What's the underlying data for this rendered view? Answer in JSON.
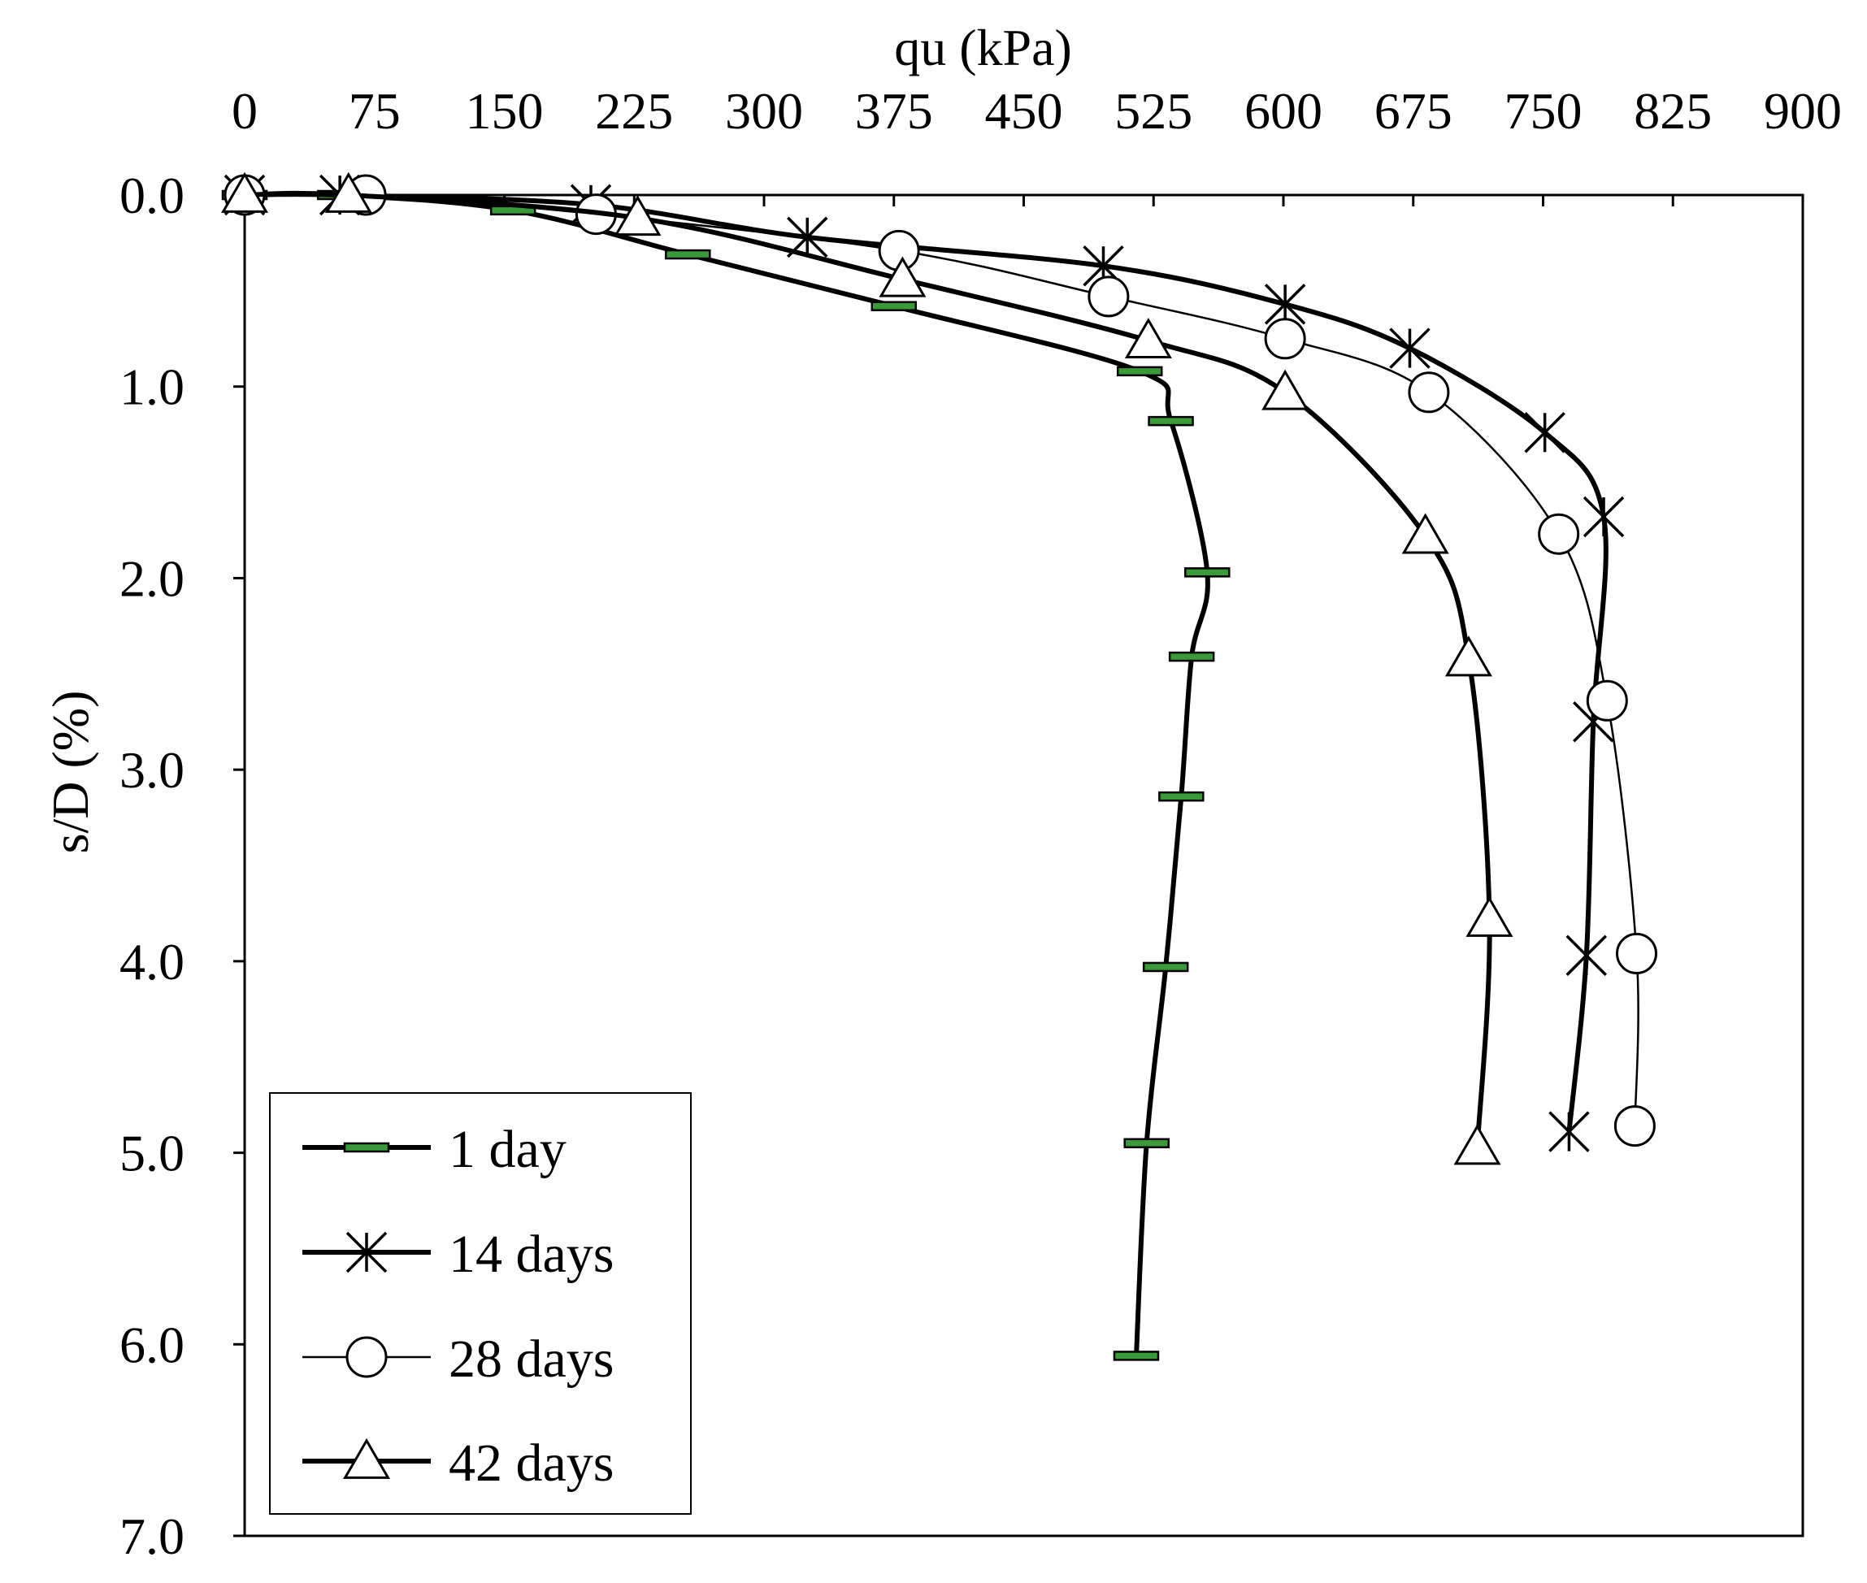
{
  "chart_data": {
    "type": "line",
    "xlabel": "qu (kPa)",
    "ylabel": "s/D (%)",
    "x_axis_position": "top",
    "y_axis_inverted": true,
    "xlim": [
      0,
      900
    ],
    "ylim": [
      0,
      7
    ],
    "xticks": [
      0,
      75,
      150,
      225,
      300,
      375,
      450,
      525,
      600,
      675,
      750,
      825,
      900
    ],
    "xtick_labels": [
      "0",
      "75",
      "150",
      "225",
      "300",
      "375",
      "450",
      "525",
      "600",
      "675",
      "750",
      "825",
      "900"
    ],
    "yticks": [
      0,
      1,
      2,
      3,
      4,
      5,
      6,
      7
    ],
    "ytick_labels": [
      "0.0",
      "1.0",
      "2.0",
      "3.0",
      "4.0",
      "5.0",
      "6.0",
      "7.0"
    ],
    "grid": false,
    "legend_position": "bottom-left",
    "series": [
      {
        "name": "1 day",
        "marker": "dash",
        "color": "#000000",
        "marker_color": "#3a9a3a",
        "line_weight": "thick",
        "points": [
          [
            0,
            0.0
          ],
          [
            55,
            0.0
          ],
          [
            155,
            0.08
          ],
          [
            256,
            0.31
          ],
          [
            375,
            0.58
          ],
          [
            517,
            0.92
          ],
          [
            535,
            1.18
          ],
          [
            556,
            1.97
          ],
          [
            547,
            2.41
          ],
          [
            541,
            3.14
          ],
          [
            532,
            4.03
          ],
          [
            521,
            4.95
          ],
          [
            515,
            6.06
          ]
        ]
      },
      {
        "name": "14 days",
        "marker": "star",
        "color": "#000000",
        "line_weight": "thick",
        "points": [
          [
            0,
            0.0
          ],
          [
            55,
            0.0
          ],
          [
            200,
            0.05
          ],
          [
            325,
            0.22
          ],
          [
            496,
            0.37
          ],
          [
            601,
            0.57
          ],
          [
            673,
            0.8
          ],
          [
            751,
            1.24
          ],
          [
            785,
            1.68
          ],
          [
            779,
            2.75
          ],
          [
            775,
            3.97
          ],
          [
            765,
            4.89
          ]
        ]
      },
      {
        "name": "28 days",
        "marker": "circle",
        "color": "#000000",
        "line_weight": "thin",
        "points": [
          [
            0,
            0.0
          ],
          [
            70,
            0.0
          ],
          [
            203,
            0.1
          ],
          [
            378,
            0.29
          ],
          [
            499,
            0.53
          ],
          [
            601,
            0.75
          ],
          [
            684,
            1.03
          ],
          [
            759,
            1.77
          ],
          [
            787,
            2.64
          ],
          [
            804,
            3.96
          ],
          [
            803,
            4.86
          ]
        ]
      },
      {
        "name": "42 days",
        "marker": "triangle",
        "color": "#000000",
        "line_weight": "thick",
        "points": [
          [
            0,
            0.0
          ],
          [
            60,
            0.0
          ],
          [
            227,
            0.12
          ],
          [
            380,
            0.44
          ],
          [
            522,
            0.76
          ],
          [
            601,
            1.03
          ],
          [
            682,
            1.78
          ],
          [
            707,
            2.42
          ],
          [
            719,
            3.78
          ],
          [
            712,
            4.97
          ]
        ]
      }
    ]
  }
}
